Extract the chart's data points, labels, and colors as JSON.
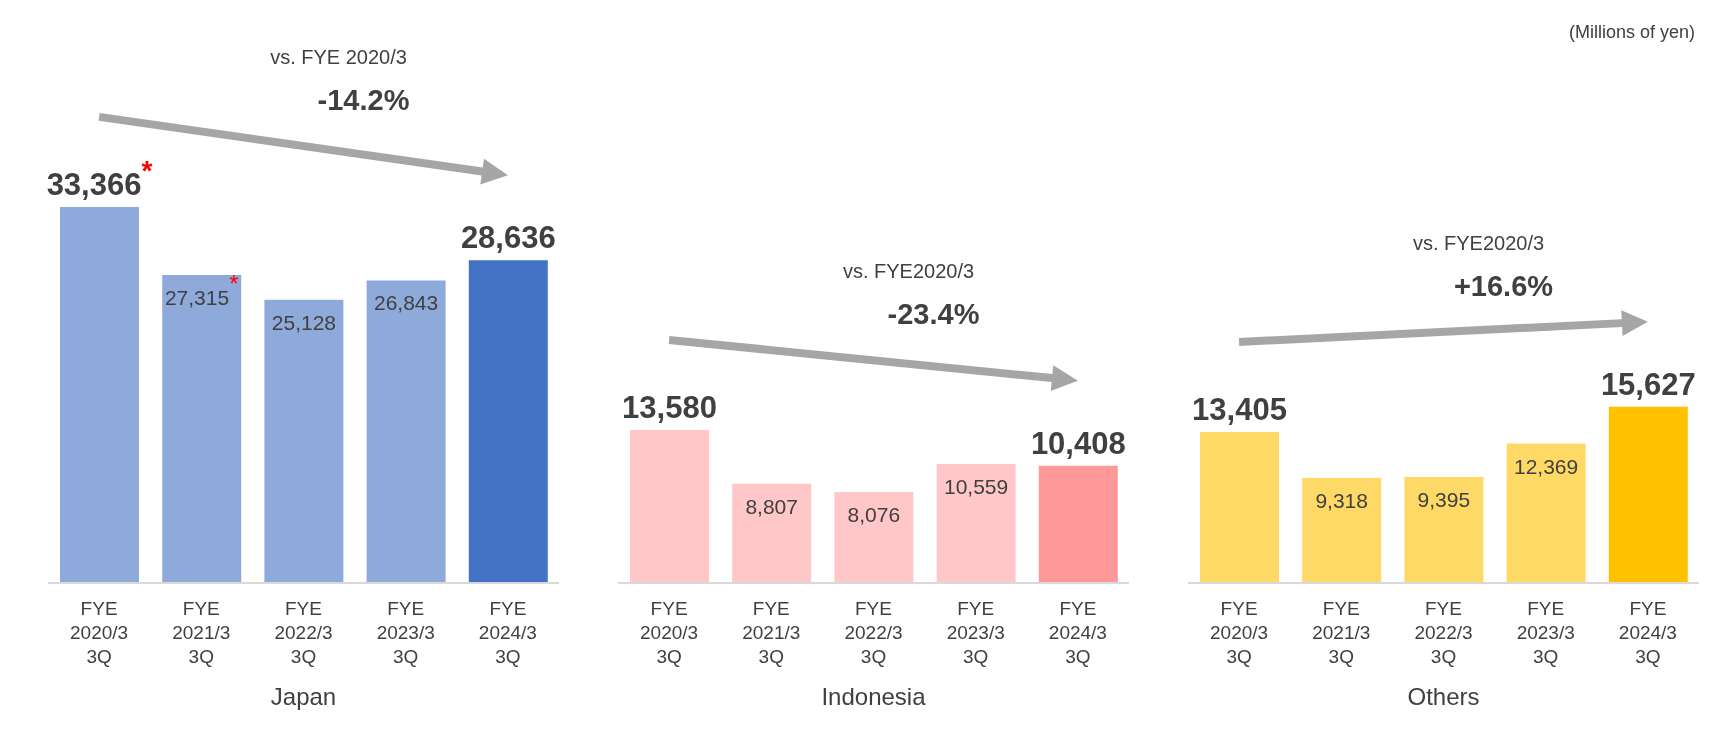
{
  "chart_data": [
    {
      "type": "bar",
      "xlabel": "Japan",
      "categories": [
        "FYE 2020/3 3Q",
        "FYE 2021/3 3Q",
        "FYE 2022/3 3Q",
        "FYE 2023/3 3Q",
        "FYE 2024/3 3Q"
      ],
      "values": [
        33366,
        27315,
        25128,
        26843,
        28636
      ],
      "value_labels": [
        "33,366$^{*}$",
        "27,315$^{*}$",
        "25,128",
        "26,843",
        "28,636"
      ],
      "colors": [
        "#8eaadb",
        "#8eaadb",
        "#8eaadb",
        "#8eaadb",
        "#4472c4"
      ],
      "annotations": [
        "vs. FYE 2020/3",
        "-14.2%"
      ]
    },
    {
      "type": "bar",
      "xlabel": "Indonesia",
      "categories": [
        "FYE 2020/3 3Q",
        "FYE 2021/3 3Q",
        "FYE 2022/3 3Q",
        "FYE 2023/3 3Q",
        "FYE 2024/3 3Q"
      ],
      "values": [
        13580,
        8807,
        8076,
        10559,
        10408
      ],
      "value_labels": [
        "13,580",
        "8,807",
        "8,076",
        "10,559",
        "10,408"
      ],
      "colors": [
        "#ffc7c7",
        "#ffc7c7",
        "#ffc7c7",
        "#ffc7c7",
        "#ff9999"
      ],
      "annotations": [
        "vs. FYE2020/3",
        "-23.4%"
      ]
    },
    {
      "type": "bar",
      "xlabel": "Others",
      "categories": [
        "FYE 2020/3 3Q",
        "FYE 2021/3 3Q",
        "FYE 2022/3 3Q",
        "FYE 2023/3 3Q",
        "FYE 2024/3 3Q"
      ],
      "values": [
        13405,
        9318,
        9395,
        12369,
        15627
      ],
      "value_labels": [
        "13,405",
        "9,318",
        "9,395",
        "12,369",
        "15,627"
      ],
      "colors": [
        "#ffd966",
        "#ffd966",
        "#ffd966",
        "#ffd966",
        "#ffc000"
      ],
      "annotations": [
        "vs. FYE2020/3",
        "+16.6%",
        "(Millions of yen)"
      ]
    }
  ]
}
